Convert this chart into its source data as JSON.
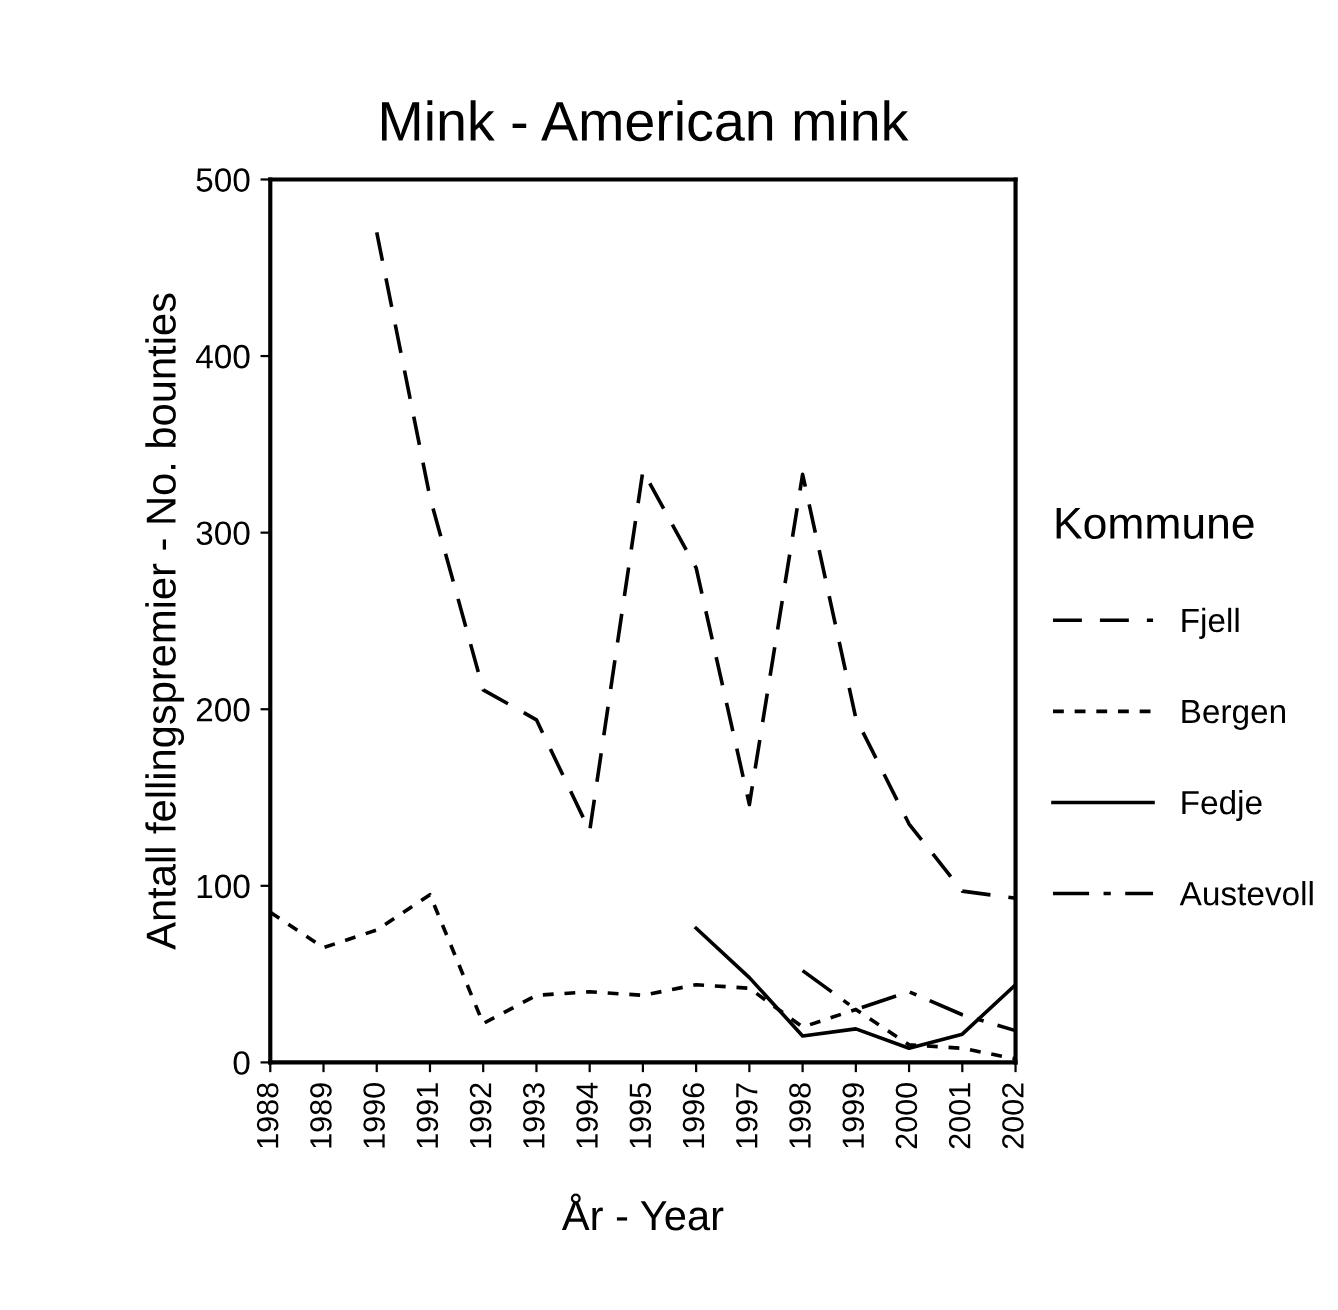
{
  "chart_data": {
    "type": "line",
    "title": "Mink - American mink",
    "xlabel": "År - Year",
    "ylabel": "Antall fellingspremier - No. bounties",
    "legend_title": "Kommune",
    "legend": "right",
    "grid": false,
    "categories": [
      "1988",
      "1989",
      "1990",
      "1991",
      "1992",
      "1993",
      "1994",
      "1995",
      "1996",
      "1997",
      "1998",
      "1999",
      "2000",
      "2001",
      "2002"
    ],
    "ylim": [
      0,
      500
    ],
    "yticks": [
      0,
      100,
      200,
      300,
      400,
      500
    ],
    "series": [
      {
        "name": "Fjell",
        "color": "#000000",
        "line_style": "dashed",
        "values": [
          null,
          null,
          470,
          320,
          211,
          194,
          131,
          335,
          280,
          146,
          333,
          195,
          135,
          97,
          93
        ]
      },
      {
        "name": "Bergen",
        "color": "#000000",
        "line_style": "dotted",
        "values": [
          85,
          65,
          75,
          95,
          22,
          38,
          40,
          38,
          44,
          42,
          20,
          30,
          10,
          8,
          2
        ]
      },
      {
        "name": "Fedje",
        "color": "#000000",
        "line_style": "solid",
        "values": [
          null,
          null,
          null,
          null,
          null,
          null,
          null,
          null,
          76,
          48,
          15,
          19,
          8,
          16,
          44
        ]
      },
      {
        "name": "Austevoll",
        "color": "#000000",
        "line_style": "dashdot",
        "values": [
          null,
          null,
          null,
          null,
          null,
          null,
          null,
          null,
          null,
          null,
          52,
          30,
          40,
          27,
          18
        ]
      }
    ]
  }
}
